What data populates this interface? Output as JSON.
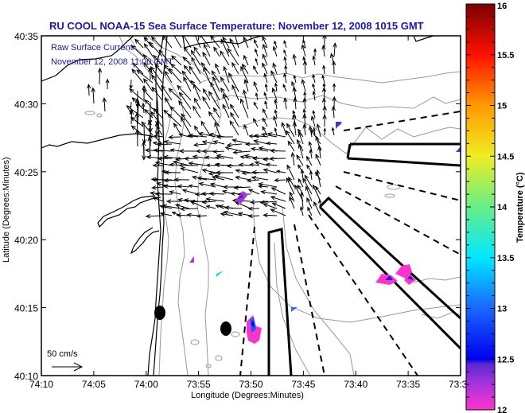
{
  "title": "RU COOL  NOAA-15  Sea Surface Temperature:  November 12, 2008 1015 GMT",
  "overlay": {
    "line1": "Raw Surface Current",
    "line2": "November 12, 2008 11:00 GMT"
  },
  "scale_bar": {
    "label": "50 cm/s"
  },
  "x_axis": {
    "label": "Longitude (Degrees:Minutes)",
    "ticks": [
      "74:10",
      "74:05",
      "74:00",
      "73:55",
      "73:50",
      "73:45",
      "73:40",
      "73:35",
      "73:30"
    ],
    "range_minutes_west": [
      4450,
      4410
    ]
  },
  "y_axis": {
    "label": "Latitude (Degrees:Minutes)",
    "ticks": [
      "40:10",
      "40:15",
      "40:20",
      "40:25",
      "40:30",
      "40:35"
    ],
    "range_minutes_north": [
      2410,
      2435
    ]
  },
  "colorbar": {
    "label": "Temperature (°C)",
    "min": 12,
    "max": 16,
    "tick_labels": [
      "12",
      "12.5",
      "13",
      "13.5",
      "14",
      "14.5",
      "15",
      "15.5",
      "16"
    ],
    "stops": [
      {
        "value": 12.0,
        "color": "#ff33cc"
      },
      {
        "value": 12.25,
        "color": "#aa33dd"
      },
      {
        "value": 12.45,
        "color": "#5a2ad0"
      },
      {
        "value": 12.5,
        "color": "#0000ee"
      },
      {
        "value": 13.0,
        "color": "#1a66ff"
      },
      {
        "value": 13.5,
        "color": "#00e8ff"
      },
      {
        "value": 14.0,
        "color": "#66ee88"
      },
      {
        "value": 14.5,
        "color": "#eeee22"
      },
      {
        "value": 15.0,
        "color": "#ff9900"
      },
      {
        "value": 15.5,
        "color": "#ff1100"
      },
      {
        "value": 16.0,
        "color": "#7a0000"
      }
    ]
  },
  "colors": {
    "title": "#1a1aa8",
    "coastline": "#000000",
    "bathymetry": "#999999",
    "vectors": "#000000"
  },
  "markers": [
    {
      "name": "station-a",
      "lon_min": 4438.9,
      "lat_min": 2414.5
    },
    {
      "name": "station-b",
      "lon_min": 4432.6,
      "lat_min": 2413.6
    }
  ]
}
